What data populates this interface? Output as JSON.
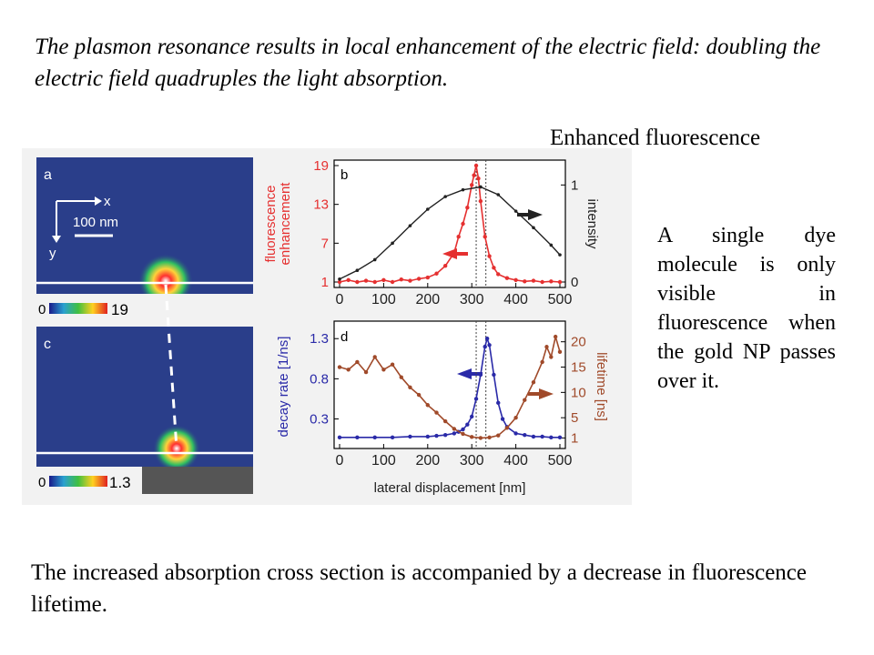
{
  "title_text": "The plasmon resonance results in local enhancement of the electric field: doubling the electric field quadruples the light absorption.",
  "callout_text": "Enhanced fluorescence",
  "side_text": "A single dye molecule is only visible in fluorescence when the gold NP passes over it.",
  "bottom_text": "The increased absorption cross section is accompanied by a decrease in fluorescence lifetime.",
  "figure": {
    "panel_a": {
      "label": "a",
      "x_axis": "x",
      "y_axis": "y",
      "scale_bar": "100 nm",
      "colorbar_min": "0",
      "colorbar_max": "19"
    },
    "panel_c": {
      "label": "c",
      "colorbar_min": "0",
      "colorbar_max": "1.3"
    }
  },
  "chart_data": [
    {
      "type": "line",
      "panel": "b",
      "x_ticks": [
        "0",
        "100",
        "200",
        "300",
        "400",
        "500"
      ],
      "xlim": [
        0,
        500
      ],
      "ylabel_left": "fluorescence enhancement",
      "ylabel_right": "intensity",
      "yticks_left": [
        "19",
        "13",
        "7",
        "1"
      ],
      "ylim_left": [
        1,
        19
      ],
      "yticks_right": [
        "1",
        "0"
      ],
      "ylim_right": [
        0,
        1.2
      ],
      "series": [
        {
          "axis": "left",
          "color": "#e53030",
          "x": [
            0,
            20,
            40,
            60,
            80,
            100,
            120,
            140,
            160,
            180,
            200,
            220,
            240,
            260,
            270,
            280,
            290,
            300,
            305,
            310,
            315,
            320,
            330,
            340,
            350,
            360,
            380,
            400,
            420,
            440,
            460,
            480,
            500
          ],
          "values": [
            1,
            1.3,
            1,
            1.2,
            1,
            1.3,
            1,
            1.4,
            1.2,
            1.5,
            1.7,
            2.3,
            3.5,
            5.5,
            8,
            10,
            12.5,
            16,
            17.5,
            19,
            17,
            13.5,
            8,
            5,
            3.2,
            2.2,
            1.6,
            1.3,
            1.1,
            1.2,
            1,
            1.1,
            1
          ]
        },
        {
          "axis": "right",
          "color": "#222222",
          "x": [
            0,
            40,
            80,
            120,
            160,
            200,
            240,
            280,
            320,
            360,
            400,
            440,
            480,
            500
          ],
          "values": [
            0.03,
            0.12,
            0.23,
            0.4,
            0.58,
            0.75,
            0.88,
            0.95,
            0.98,
            0.9,
            0.73,
            0.56,
            0.38,
            0.28
          ]
        }
      ]
    },
    {
      "type": "line",
      "panel": "d",
      "x_ticks": [
        "0",
        "100",
        "200",
        "300",
        "400",
        "500"
      ],
      "xlim": [
        0,
        500
      ],
      "xlabel": "lateral displacement [nm]",
      "ylabel_left": "decay rate [1/ns]",
      "ylabel_right": "lifetime [ns]",
      "yticks_left": [
        "1.3",
        "0.8",
        "0.3"
      ],
      "ylim_left": [
        0,
        1.45
      ],
      "yticks_right": [
        "20",
        "15",
        "10",
        "5",
        "1"
      ],
      "ylim_right": [
        0,
        23
      ],
      "series": [
        {
          "axis": "left",
          "color": "#2a2aa8",
          "x": [
            0,
            40,
            80,
            120,
            160,
            200,
            220,
            240,
            260,
            270,
            280,
            290,
            300,
            310,
            320,
            330,
            335,
            340,
            350,
            360,
            370,
            380,
            400,
            420,
            440,
            460,
            480,
            500
          ],
          "values": [
            0.07,
            0.07,
            0.07,
            0.07,
            0.08,
            0.08,
            0.09,
            0.1,
            0.12,
            0.14,
            0.17,
            0.23,
            0.33,
            0.55,
            0.85,
            1.2,
            1.3,
            1.22,
            0.85,
            0.5,
            0.3,
            0.2,
            0.12,
            0.1,
            0.08,
            0.08,
            0.07,
            0.07
          ]
        },
        {
          "axis": "right",
          "color": "#a04a2a",
          "x": [
            0,
            20,
            40,
            60,
            80,
            100,
            120,
            140,
            160,
            180,
            200,
            220,
            240,
            260,
            280,
            300,
            320,
            340,
            360,
            380,
            400,
            420,
            440,
            460,
            470,
            480,
            490,
            500
          ],
          "values": [
            15,
            14.5,
            16,
            14,
            17,
            14.5,
            15.5,
            13,
            11,
            9.5,
            7.5,
            6,
            4.3,
            2.8,
            1.8,
            1.2,
            1,
            1.1,
            1.5,
            3,
            5,
            8.5,
            12,
            16,
            19,
            17,
            21,
            18
          ]
        }
      ]
    }
  ]
}
